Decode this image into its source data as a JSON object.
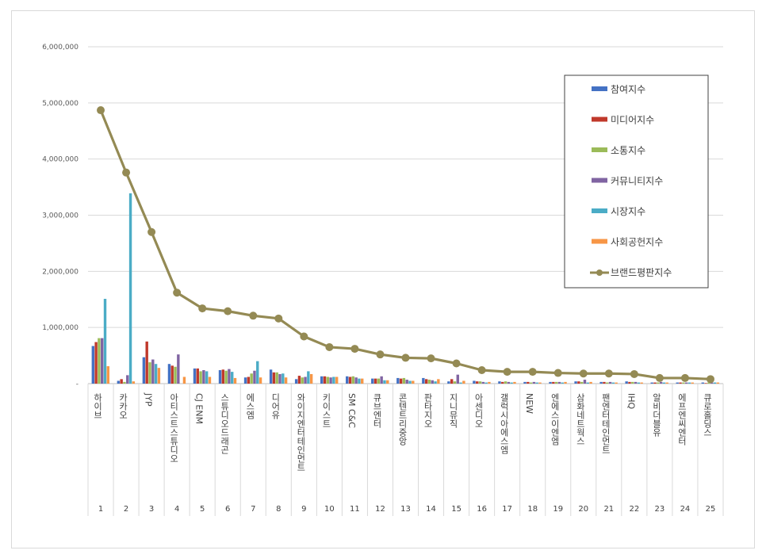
{
  "chart_data": {
    "type": "bar",
    "title": "",
    "xlabel": "",
    "ylabel": "",
    "ylim": [
      0,
      6000000
    ],
    "yticks": [
      "-",
      "1,000,000",
      "2,000,000",
      "3,000,000",
      "4,000,000",
      "5,000,000",
      "6,000,000"
    ],
    "grid": true,
    "legend_position": "top-right",
    "categories": [
      "하이브",
      "카카오",
      "JYP",
      "아티스트스튜디오",
      "CJ ENM",
      "스튜디오드래곤",
      "에스엠",
      "디어유",
      "와이지엔터테인먼트",
      "키이스트",
      "SM C&C",
      "큐브엔터",
      "콘텐트리중앙",
      "판타지오",
      "지니뮤직",
      "아센디오",
      "갤럭시아에스엠",
      "NEW",
      "엔에스이엔엠",
      "삼화네트웍스",
      "팬엔터테인먼트",
      "IHQ",
      "알비더블유",
      "에프엔씨엔터",
      "큐로홀딩스"
    ],
    "ranks": [
      "1",
      "2",
      "3",
      "4",
      "5",
      "6",
      "7",
      "8",
      "9",
      "10",
      "11",
      "12",
      "13",
      "14",
      "15",
      "16",
      "17",
      "18",
      "19",
      "20",
      "21",
      "22",
      "23",
      "24",
      "25"
    ],
    "series": [
      {
        "name": "참여지수",
        "color": "#4472C4",
        "kind": "bar",
        "values": [
          670000,
          50000,
          470000,
          350000,
          270000,
          240000,
          110000,
          250000,
          80000,
          130000,
          130000,
          90000,
          100000,
          100000,
          40000,
          50000,
          40000,
          30000,
          30000,
          40000,
          30000,
          40000,
          20000,
          20000,
          20000
        ]
      },
      {
        "name": "미디어지수",
        "color": "#C0392B",
        "kind": "bar",
        "values": [
          740000,
          80000,
          750000,
          320000,
          270000,
          250000,
          120000,
          200000,
          140000,
          130000,
          120000,
          90000,
          90000,
          80000,
          80000,
          40000,
          30000,
          30000,
          30000,
          40000,
          30000,
          30000,
          20000,
          20000,
          10000
        ]
      },
      {
        "name": "소통지수",
        "color": "#9BBB59",
        "kind": "bar",
        "values": [
          810000,
          30000,
          380000,
          300000,
          220000,
          230000,
          180000,
          200000,
          110000,
          120000,
          130000,
          90000,
          100000,
          70000,
          40000,
          40000,
          40000,
          20000,
          30000,
          30000,
          20000,
          30000,
          20000,
          20000,
          20000
        ]
      },
      {
        "name": "커뮤니티지수",
        "color": "#8064A2",
        "kind": "bar",
        "values": [
          810000,
          150000,
          430000,
          520000,
          240000,
          260000,
          230000,
          170000,
          120000,
          110000,
          110000,
          130000,
          70000,
          60000,
          160000,
          30000,
          30000,
          30000,
          30000,
          70000,
          30000,
          30000,
          30000,
          20000,
          20000
        ]
      },
      {
        "name": "시장지수",
        "color": "#4BACC6",
        "kind": "bar",
        "values": [
          1510000,
          3390000,
          350000,
          0,
          220000,
          210000,
          400000,
          180000,
          220000,
          120000,
          90000,
          60000,
          50000,
          40000,
          20000,
          20000,
          20000,
          20000,
          20000,
          20000,
          20000,
          20000,
          20000,
          20000,
          20000
        ]
      },
      {
        "name": "사회공헌지수",
        "color": "#F79646",
        "kind": "bar",
        "values": [
          310000,
          40000,
          280000,
          120000,
          120000,
          100000,
          110000,
          110000,
          170000,
          120000,
          90000,
          60000,
          50000,
          80000,
          50000,
          30000,
          30000,
          20000,
          30000,
          30000,
          20000,
          20000,
          20000,
          20000,
          20000
        ]
      },
      {
        "name": "브랜드평판지수",
        "color": "#948A54",
        "kind": "line",
        "values": [
          4870000,
          3760000,
          2700000,
          1620000,
          1340000,
          1290000,
          1210000,
          1160000,
          840000,
          650000,
          620000,
          520000,
          460000,
          450000,
          360000,
          240000,
          210000,
          210000,
          190000,
          180000,
          180000,
          170000,
          100000,
          100000,
          80000
        ]
      }
    ]
  }
}
